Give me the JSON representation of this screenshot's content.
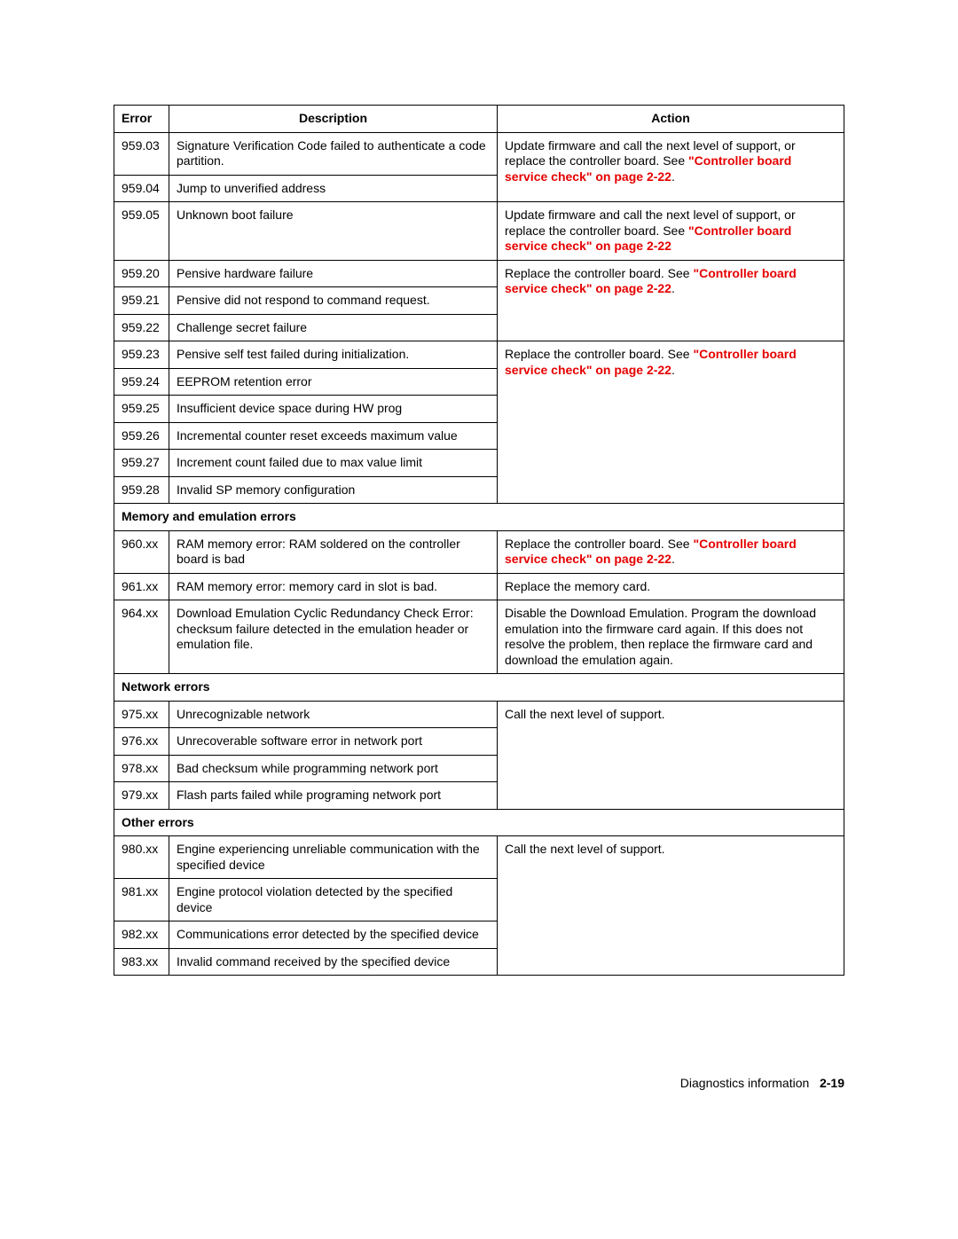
{
  "headers": {
    "error": "Error",
    "description": "Description",
    "action": "Action"
  },
  "link_text": "\"Controller board service check\" on page 2-22",
  "link_text_inline1": "\"Controller board service check\" on page 2-22",
  "link_text_inline2": "\"Controller board service check\" on page 2-22",
  "action1_prefix": "Update firmware and call the next level of support, or replace the controller board. See ",
  "action2_prefix": "Update firmware and call the next level of support, or replace the controller board. See ",
  "action3_prefix": "Replace the controller board. See ",
  "action4_prefix": "Replace the controller board. See ",
  "action5_prefix": "Replace the controller board. See ",
  "period": ".",
  "rows": {
    "r95903": {
      "code": "959.03",
      "desc": "Signature Verification Code failed to authenticate a code partition."
    },
    "r95904": {
      "code": "959.04",
      "desc": "Jump to unverified address"
    },
    "r95905": {
      "code": "959.05",
      "desc": "Unknown boot failure"
    },
    "r95920": {
      "code": "959.20",
      "desc": "Pensive hardware failure"
    },
    "r95921": {
      "code": "959.21",
      "desc": "Pensive did not respond to command request."
    },
    "r95922": {
      "code": "959.22",
      "desc": "Challenge secret failure"
    },
    "r95923": {
      "code": "959.23",
      "desc": "Pensive self test failed during initialization."
    },
    "r95924": {
      "code": "959.24",
      "desc": "EEPROM retention error"
    },
    "r95925": {
      "code": "959.25",
      "desc": "Insufficient device space during HW prog"
    },
    "r95926": {
      "code": "959.26",
      "desc": "Incremental counter reset exceeds maximum value"
    },
    "r95927": {
      "code": "959.27",
      "desc": "Increment count failed due to max value limit"
    },
    "r95928": {
      "code": "959.28",
      "desc": "Invalid SP memory configuration"
    }
  },
  "sections": {
    "mem": "Memory and emulation errors",
    "net": "Network errors",
    "other": "Other errors"
  },
  "mem": {
    "r960": {
      "code": "960.xx",
      "desc": "RAM memory error: RAM soldered on the controller board is bad"
    },
    "r961": {
      "code": "961.xx",
      "desc": "RAM memory error: memory card in slot is bad.",
      "action": "Replace the memory card."
    },
    "r964": {
      "code": "964.xx",
      "desc": "Download Emulation Cyclic Redundancy Check Error: checksum failure detected in the emulation header or emulation file.",
      "action": "Disable the Download Emulation. Program the download emulation into the firmware card again. If this does not resolve the problem, then replace the firmware card and download the emulation again."
    }
  },
  "net": {
    "r975": {
      "code": "975.xx",
      "desc": "Unrecognizable network",
      "action": "Call the next level of support."
    },
    "r976": {
      "code": "976.xx",
      "desc": "Unrecoverable software error in network port"
    },
    "r978": {
      "code": "978.xx",
      "desc": "Bad checksum while programming network port"
    },
    "r979": {
      "code": "979.xx",
      "desc": "Flash parts failed while programing network port"
    }
  },
  "other": {
    "r980": {
      "code": "980.xx",
      "desc": "Engine experiencing unreliable communication with the specified device",
      "action": "Call the next level of support."
    },
    "r981": {
      "code": "981.xx",
      "desc": "Engine protocol violation detected by the specified device"
    },
    "r982": {
      "code": "982.xx",
      "desc": "Communications error detected by the specified device"
    },
    "r983": {
      "code": "983.xx",
      "desc": "Invalid command received by the specified device"
    }
  },
  "footer": {
    "label": "Diagnostics information",
    "page": "2-19"
  },
  "colors": {
    "link": "#e60000",
    "text": "#000000",
    "border": "#000000",
    "bg": "#ffffff"
  }
}
